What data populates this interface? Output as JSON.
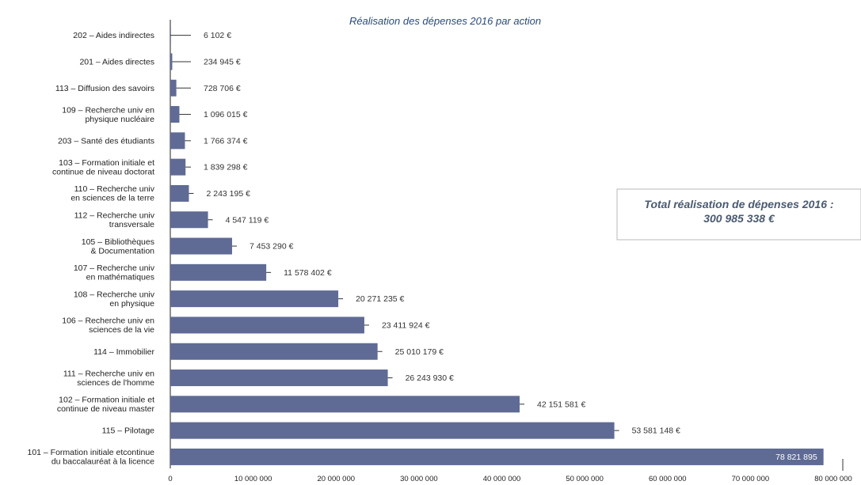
{
  "chart_data": {
    "type": "bar",
    "orientation": "horizontal",
    "title": "Réalisation des dépenses 2016 par action",
    "categories": [
      [
        "202 – Aides indirectes"
      ],
      [
        "201 – Aides directes"
      ],
      [
        "113 – Diffusion des savoirs"
      ],
      [
        "109 – Recherche univ en",
        "physique nucléaire"
      ],
      [
        "203 – Santé des étudiants"
      ],
      [
        "103 – Formation initiale et",
        "continue de niveau doctorat"
      ],
      [
        "110 – Recherche univ",
        "en sciences de la terre"
      ],
      [
        "112 – Recherche univ",
        "transversale"
      ],
      [
        "105 – Bibliothèques",
        "& Documentation"
      ],
      [
        "107 – Recherche univ",
        "en mathématiques"
      ],
      [
        "108 – Recherche univ",
        "en physique"
      ],
      [
        "106 – Recherche univ en",
        "sciences de la vie"
      ],
      [
        "114 – Immobilier"
      ],
      [
        "111 – Recherche univ en",
        "sciences de l'homme"
      ],
      [
        "102 – Formation initiale et",
        "continue de niveau master"
      ],
      [
        "115 – Pilotage"
      ],
      [
        "101 – Formation initiale etcontinue",
        "du baccalauréat à la licence"
      ]
    ],
    "values": [
      6102,
      234945,
      728706,
      1096015,
      1766374,
      1839298,
      2243195,
      4547119,
      7453290,
      11578402,
      20271235,
      23411924,
      25010179,
      26243930,
      42151581,
      53581148,
      78821895
    ],
    "value_labels": [
      "6 102 €",
      "234 945 €",
      "728 706 €",
      "1 096 015 €",
      "1 766 374 €",
      "1 839 298 €",
      "2 243 195 €",
      "4 547 119 €",
      "7 453 290 €",
      "11 578 402 €",
      "20 271 235 €",
      "23 411 924 €",
      "25 010 179 €",
      "26 243 930 €",
      "42 151 581 €",
      "53 581 148 €",
      "78 821 895"
    ],
    "xlim": [
      0,
      80000000
    ],
    "xticks": [
      0,
      10000000,
      20000000,
      30000000,
      40000000,
      50000000,
      60000000,
      70000000,
      80000000
    ],
    "xtick_labels": [
      "0",
      "10 000 000",
      "20 000 000",
      "30 000 000",
      "40 000 000",
      "50 000 000",
      "60 000 000",
      "70 000 000",
      "80 000 000"
    ],
    "bar_color": "#5f6b94",
    "grid": false,
    "annotation": [
      "Total réalisation de dépenses 2016 :",
      "300 985 338 €"
    ]
  }
}
